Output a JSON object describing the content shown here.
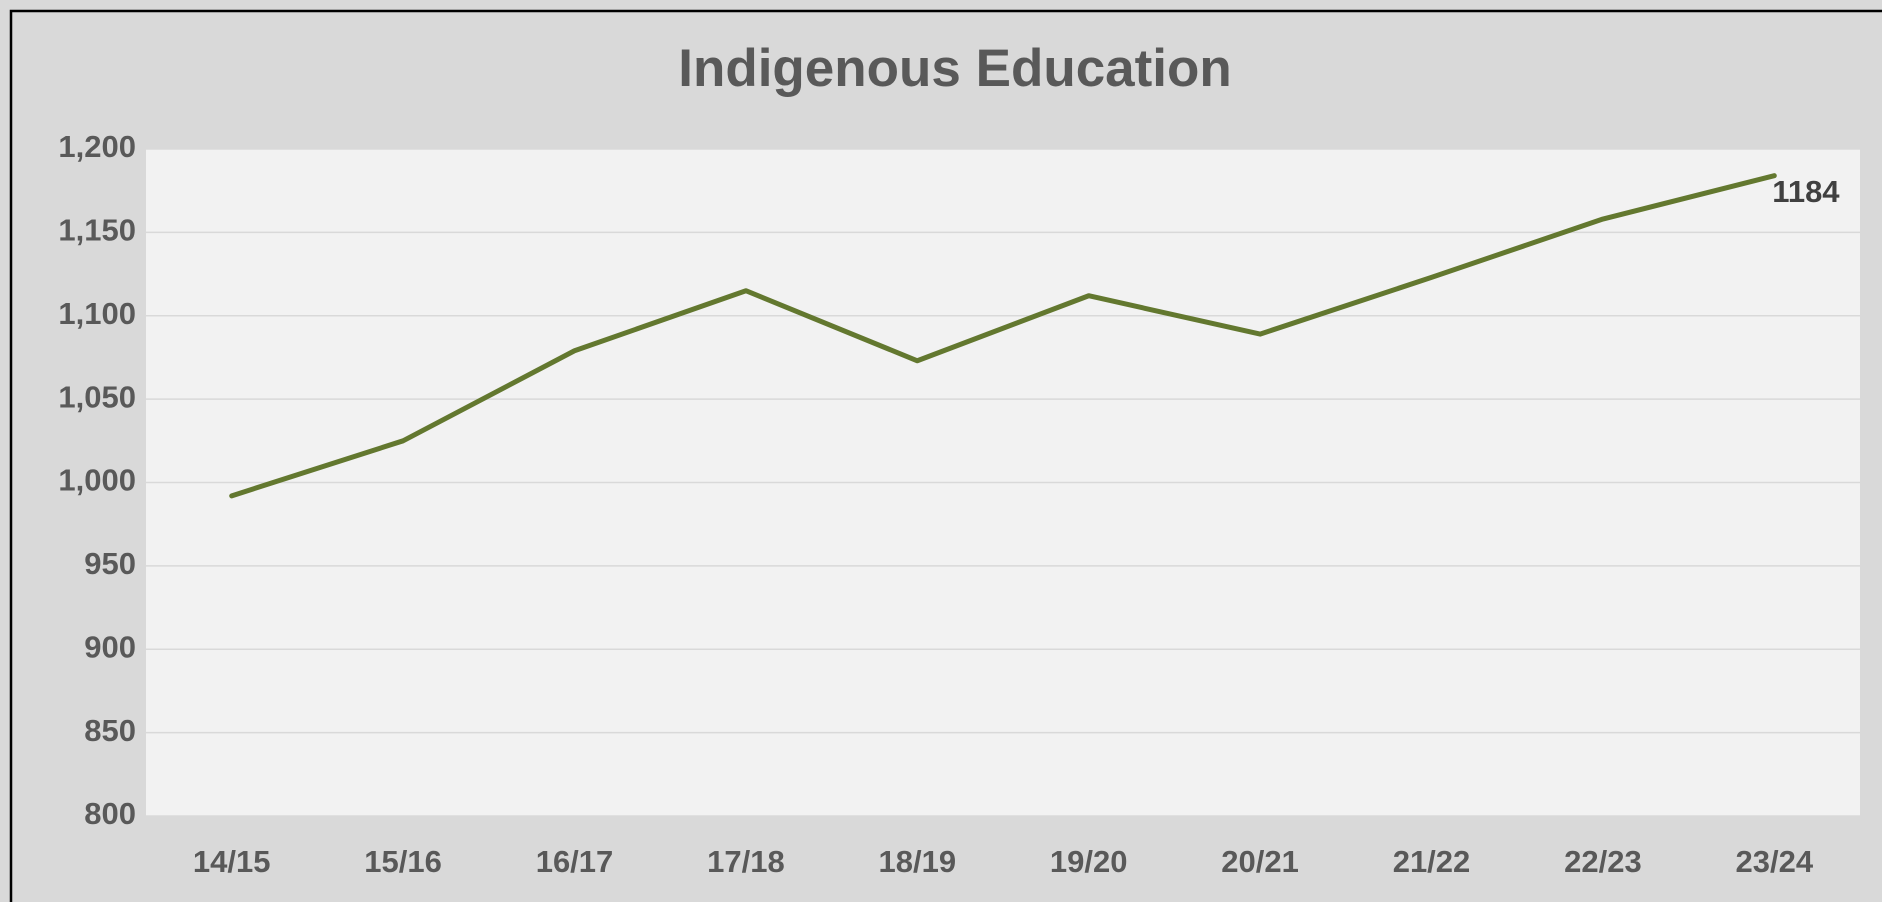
{
  "chart_data": {
    "type": "line",
    "title": "Indigenous Education",
    "categories": [
      "14/15",
      "15/16",
      "16/17",
      "17/18",
      "18/19",
      "19/20",
      "20/21",
      "21/22",
      "22/23",
      "23/24"
    ],
    "series": [
      {
        "name": "Indigenous Education",
        "color": "#63782f",
        "values": [
          992,
          1025,
          1079,
          1115,
          1073,
          1112,
          1089,
          1123,
          1158,
          1184
        ]
      }
    ],
    "ylim": [
      800,
      1200
    ],
    "yticks": [
      800,
      850,
      900,
      950,
      {
        "value": 1000,
        "label": "1,000"
      },
      {
        "value": 1050,
        "label": "1,050"
      },
      {
        "value": 1100,
        "label": "1,100"
      },
      {
        "value": 1150,
        "label": "1,150"
      },
      {
        "value": 1200,
        "label": "1,200"
      }
    ],
    "grid": true
  }
}
